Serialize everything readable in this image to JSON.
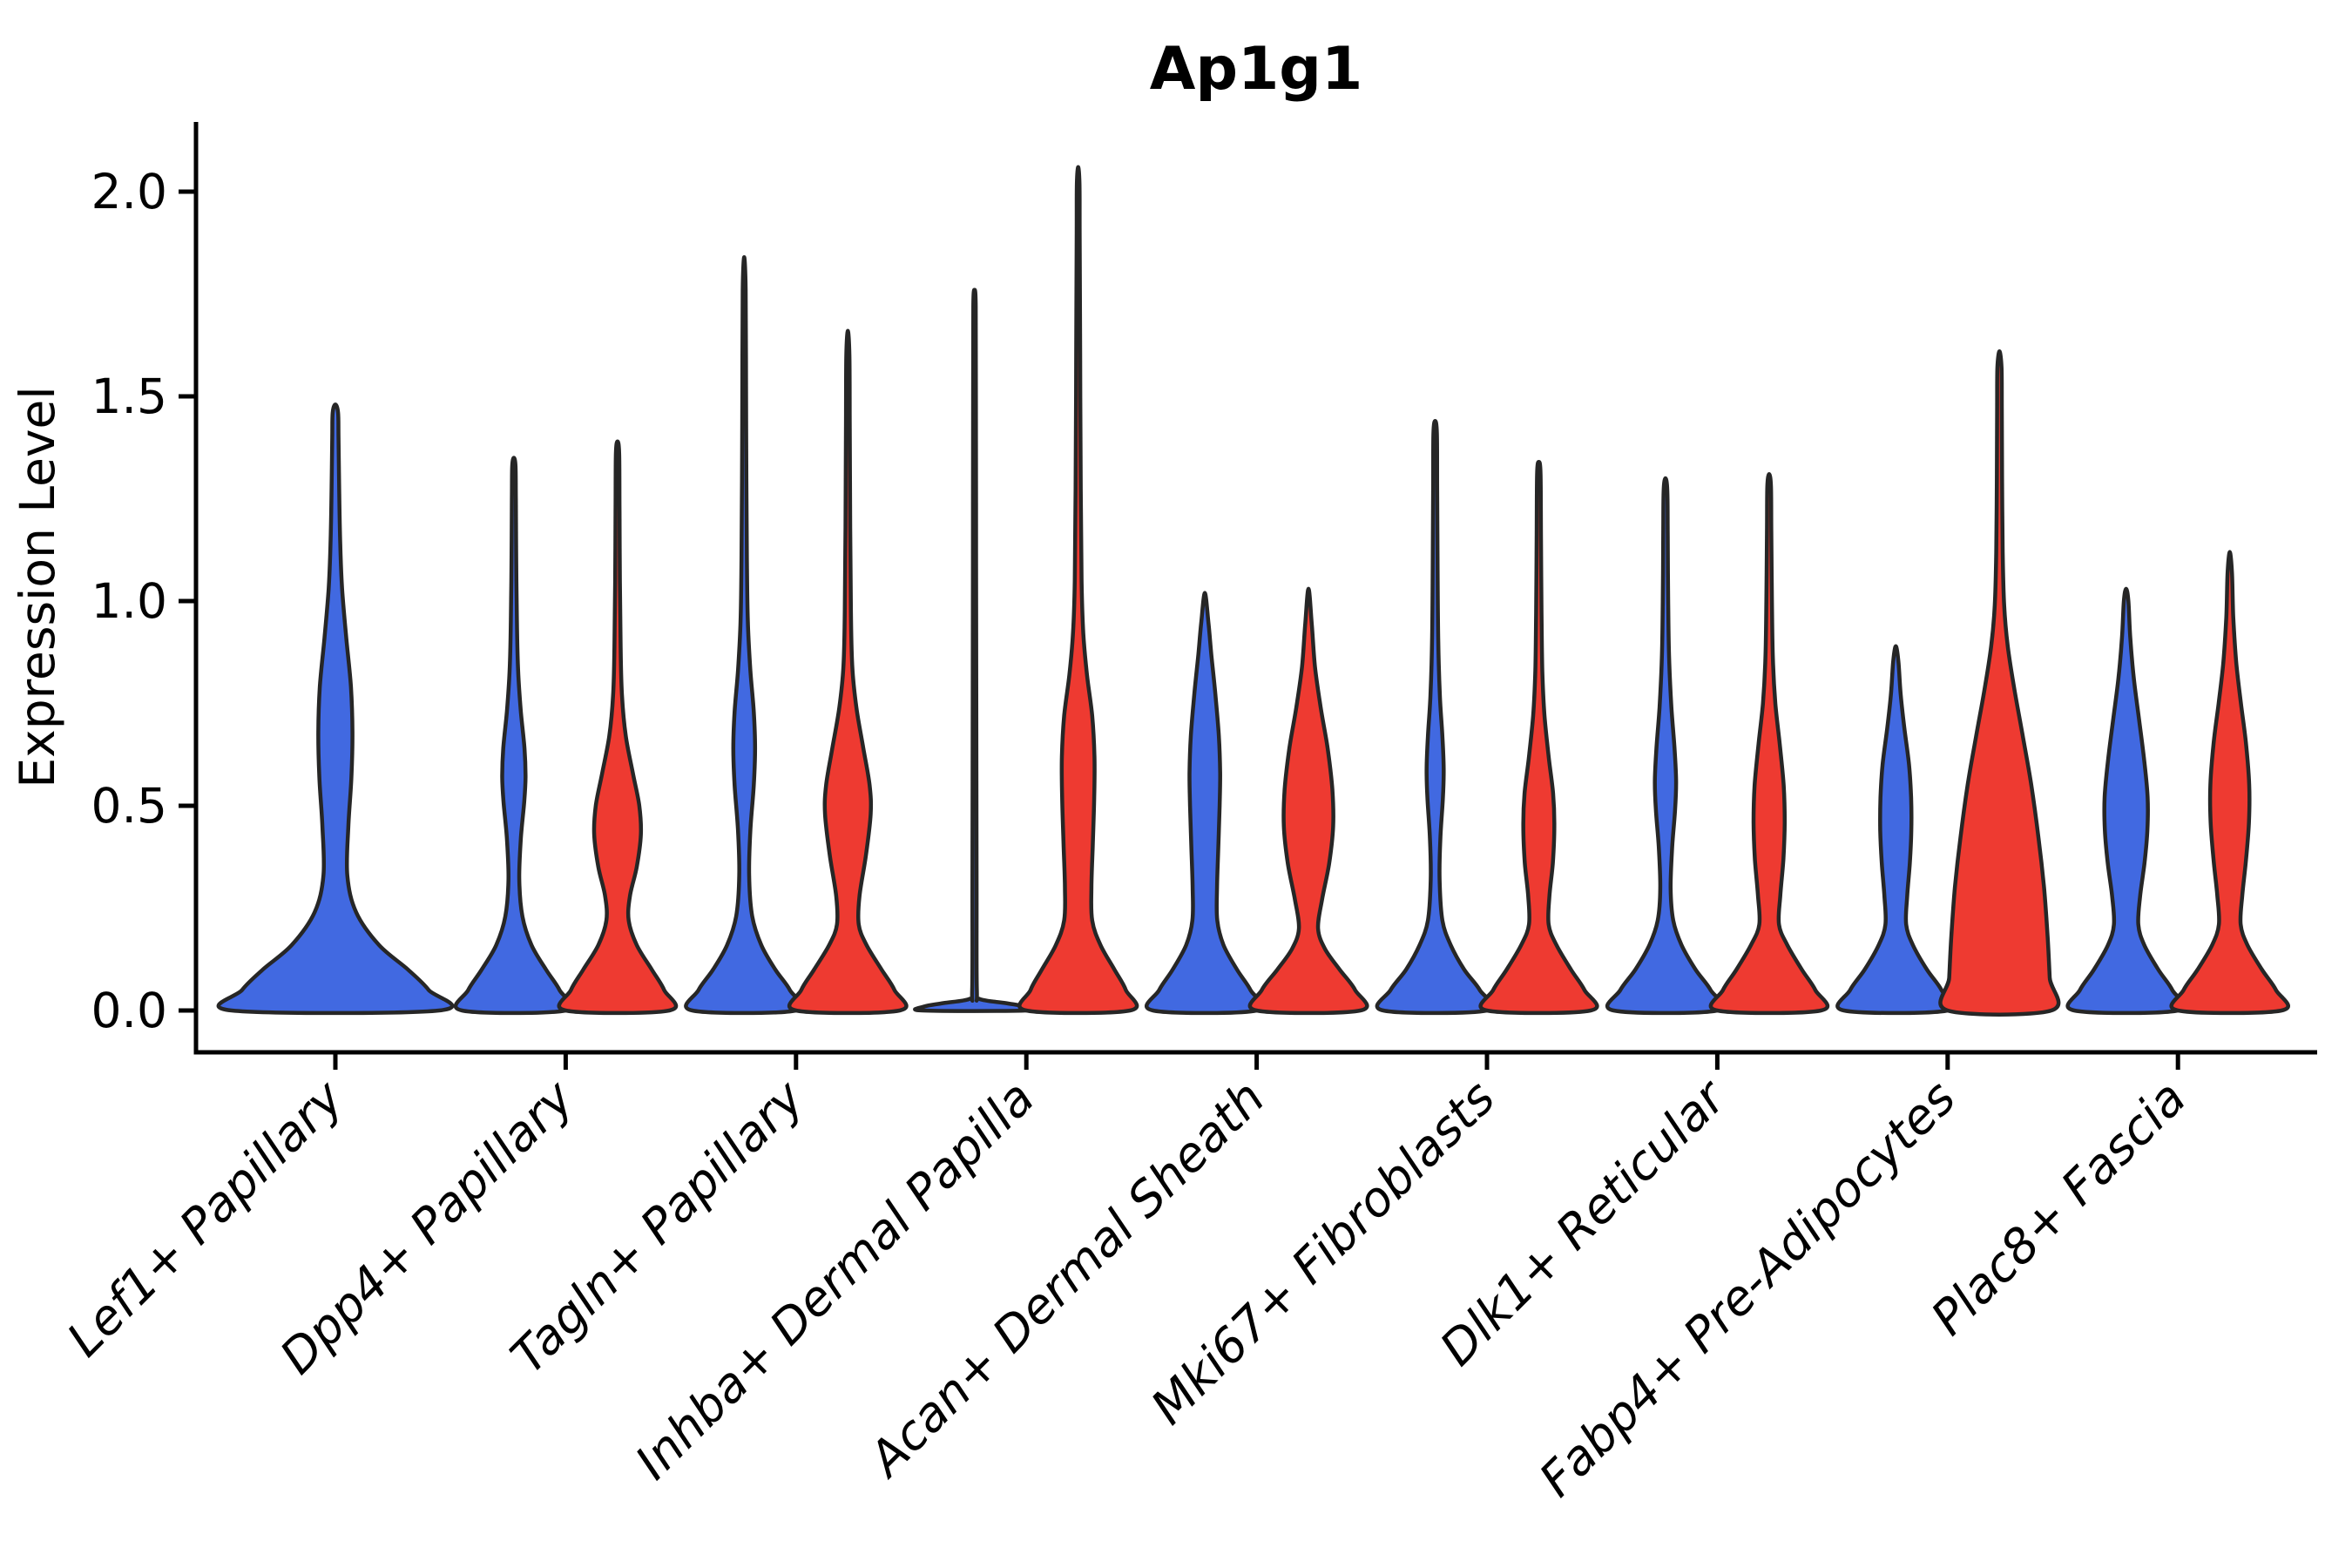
{
  "chart_data": {
    "type": "violin",
    "title": "Ap1g1",
    "xlabel": "",
    "ylabel": "Expression Level",
    "ylim": [
      0,
      2.1
    ],
    "yticks": [
      0.0,
      0.5,
      1.0,
      1.5,
      2.0
    ],
    "grid": false,
    "legend_position": "none",
    "split": "paired half-width violins per category (blue left, red right)",
    "colors": {
      "blue": "#4169E1",
      "red": "#EE3A31",
      "outline": "#262626",
      "axis": "#000000"
    },
    "categories": [
      "Lef1+ Papillary",
      "Dpp4+ Papillary",
      "Tagln+ Papillary",
      "Inhba+ Dermal Papilla",
      "Acan+ Dermal Sheath",
      "Mki67+ Fibroblasts",
      "Dlk1+ Reticular",
      "Fabp4+ Pre-Adipocytes",
      "Plac8+ Fascia"
    ],
    "violins": [
      {
        "category": "Lef1+ Papillary",
        "split": "blue",
        "position": "full",
        "tip": 1.48,
        "profile": [
          [
            0,
            1.0
          ],
          [
            0.05,
            0.9
          ],
          [
            0.1,
            0.7
          ],
          [
            0.16,
            0.42
          ],
          [
            0.24,
            0.2
          ],
          [
            0.33,
            0.115
          ],
          [
            0.45,
            0.125
          ],
          [
            0.57,
            0.155
          ],
          [
            0.68,
            0.165
          ],
          [
            0.79,
            0.15
          ],
          [
            0.91,
            0.105
          ],
          [
            1.03,
            0.065
          ],
          [
            1.14,
            0.047
          ],
          [
            1.27,
            0.037
          ],
          [
            1.4,
            0.03
          ],
          [
            1.46,
            0.026
          ],
          [
            1.48,
            0
          ]
        ]
      },
      {
        "category": "Dpp4+ Papillary",
        "split": "blue",
        "position": "left",
        "tip": 1.35,
        "profile": [
          [
            0,
            1.0
          ],
          [
            0.05,
            0.88
          ],
          [
            0.1,
            0.62
          ],
          [
            0.16,
            0.34
          ],
          [
            0.23,
            0.165
          ],
          [
            0.32,
            0.105
          ],
          [
            0.42,
            0.135
          ],
          [
            0.51,
            0.2
          ],
          [
            0.57,
            0.225
          ],
          [
            0.64,
            0.205
          ],
          [
            0.73,
            0.135
          ],
          [
            0.83,
            0.082
          ],
          [
            0.95,
            0.058
          ],
          [
            1.1,
            0.046
          ],
          [
            1.25,
            0.038
          ],
          [
            1.33,
            0.032
          ],
          [
            1.35,
            0
          ]
        ]
      },
      {
        "category": "Dpp4+ Papillary",
        "split": "red",
        "position": "right",
        "tip": 1.39,
        "profile": [
          [
            0,
            1.0
          ],
          [
            0.05,
            0.9
          ],
          [
            0.1,
            0.66
          ],
          [
            0.16,
            0.37
          ],
          [
            0.22,
            0.215
          ],
          [
            0.28,
            0.24
          ],
          [
            0.35,
            0.37
          ],
          [
            0.43,
            0.45
          ],
          [
            0.5,
            0.42
          ],
          [
            0.58,
            0.295
          ],
          [
            0.67,
            0.16
          ],
          [
            0.77,
            0.085
          ],
          [
            0.9,
            0.058
          ],
          [
            1.05,
            0.046
          ],
          [
            1.22,
            0.038
          ],
          [
            1.36,
            0.032
          ],
          [
            1.39,
            0
          ]
        ]
      },
      {
        "category": "Tagln+ Papillary",
        "split": "blue",
        "position": "left",
        "tip": 1.84,
        "profile": [
          [
            0,
            1.0
          ],
          [
            0.05,
            0.88
          ],
          [
            0.1,
            0.6
          ],
          [
            0.16,
            0.33
          ],
          [
            0.23,
            0.155
          ],
          [
            0.33,
            0.095
          ],
          [
            0.44,
            0.12
          ],
          [
            0.55,
            0.185
          ],
          [
            0.64,
            0.21
          ],
          [
            0.73,
            0.185
          ],
          [
            0.83,
            0.12
          ],
          [
            0.95,
            0.07
          ],
          [
            1.1,
            0.052
          ],
          [
            1.3,
            0.042
          ],
          [
            1.55,
            0.035
          ],
          [
            1.76,
            0.029
          ],
          [
            1.84,
            0
          ]
        ]
      },
      {
        "category": "Tagln+ Papillary",
        "split": "red",
        "position": "right",
        "tip": 1.66,
        "profile": [
          [
            0,
            1.0
          ],
          [
            0.05,
            0.9
          ],
          [
            0.1,
            0.65
          ],
          [
            0.16,
            0.36
          ],
          [
            0.21,
            0.21
          ],
          [
            0.28,
            0.225
          ],
          [
            0.38,
            0.35
          ],
          [
            0.48,
            0.44
          ],
          [
            0.55,
            0.42
          ],
          [
            0.64,
            0.3
          ],
          [
            0.74,
            0.165
          ],
          [
            0.84,
            0.085
          ],
          [
            0.98,
            0.058
          ],
          [
            1.18,
            0.046
          ],
          [
            1.42,
            0.037
          ],
          [
            1.6,
            0.03
          ],
          [
            1.66,
            0
          ]
        ]
      },
      {
        "category": "Inhba+ Dermal Papilla",
        "split": "blue",
        "position": "left",
        "tip": 1.76,
        "profile": [
          [
            0,
            1.0
          ],
          [
            0.01,
            0.96
          ],
          [
            0.018,
            0.6
          ],
          [
            0.028,
            0.1
          ],
          [
            0.05,
            0.045
          ],
          [
            0.3,
            0.04
          ],
          [
            0.7,
            0.035
          ],
          [
            1.1,
            0.031
          ],
          [
            1.5,
            0.027
          ],
          [
            1.72,
            0.024
          ],
          [
            1.76,
            0
          ]
        ]
      },
      {
        "category": "Inhba+ Dermal Papilla",
        "split": "red",
        "position": "right",
        "tip": 2.06,
        "profile": [
          [
            0,
            1.0
          ],
          [
            0.05,
            0.92
          ],
          [
            0.1,
            0.7
          ],
          [
            0.16,
            0.43
          ],
          [
            0.22,
            0.27
          ],
          [
            0.3,
            0.255
          ],
          [
            0.4,
            0.28
          ],
          [
            0.52,
            0.31
          ],
          [
            0.62,
            0.315
          ],
          [
            0.72,
            0.27
          ],
          [
            0.82,
            0.17
          ],
          [
            0.92,
            0.1
          ],
          [
            1.05,
            0.065
          ],
          [
            1.3,
            0.048
          ],
          [
            1.6,
            0.038
          ],
          [
            1.9,
            0.029
          ],
          [
            2.02,
            0.025
          ],
          [
            2.06,
            0
          ]
        ]
      },
      {
        "category": "Acan+ Dermal Sheath",
        "split": "blue",
        "position": "left",
        "tip": 1.02,
        "profile": [
          [
            0,
            1.0
          ],
          [
            0.05,
            0.88
          ],
          [
            0.1,
            0.62
          ],
          [
            0.16,
            0.36
          ],
          [
            0.22,
            0.24
          ],
          [
            0.3,
            0.235
          ],
          [
            0.4,
            0.26
          ],
          [
            0.5,
            0.285
          ],
          [
            0.58,
            0.295
          ],
          [
            0.67,
            0.27
          ],
          [
            0.77,
            0.205
          ],
          [
            0.87,
            0.125
          ],
          [
            0.95,
            0.068
          ],
          [
            1.02,
            0
          ]
        ]
      },
      {
        "category": "Acan+ Dermal Sheath",
        "split": "red",
        "position": "right",
        "tip": 1.03,
        "profile": [
          [
            0,
            1.0
          ],
          [
            0.05,
            0.9
          ],
          [
            0.1,
            0.6
          ],
          [
            0.15,
            0.32
          ],
          [
            0.2,
            0.185
          ],
          [
            0.27,
            0.26
          ],
          [
            0.36,
            0.4
          ],
          [
            0.45,
            0.475
          ],
          [
            0.54,
            0.46
          ],
          [
            0.64,
            0.37
          ],
          [
            0.74,
            0.235
          ],
          [
            0.84,
            0.125
          ],
          [
            0.94,
            0.065
          ],
          [
            1.03,
            0
          ]
        ]
      },
      {
        "category": "Mki67+ Fibroblasts",
        "split": "blue",
        "position": "left",
        "tip": 1.44,
        "profile": [
          [
            0,
            1.0
          ],
          [
            0.05,
            0.86
          ],
          [
            0.1,
            0.56
          ],
          [
            0.16,
            0.3
          ],
          [
            0.22,
            0.14
          ],
          [
            0.32,
            0.085
          ],
          [
            0.42,
            0.1
          ],
          [
            0.52,
            0.15
          ],
          [
            0.59,
            0.165
          ],
          [
            0.67,
            0.14
          ],
          [
            0.77,
            0.09
          ],
          [
            0.9,
            0.06
          ],
          [
            1.08,
            0.047
          ],
          [
            1.28,
            0.039
          ],
          [
            1.41,
            0.033
          ],
          [
            1.44,
            0
          ]
        ]
      },
      {
        "category": "Mki67+ Fibroblasts",
        "split": "red",
        "position": "right",
        "tip": 1.34,
        "profile": [
          [
            0,
            1.0
          ],
          [
            0.05,
            0.88
          ],
          [
            0.1,
            0.62
          ],
          [
            0.16,
            0.34
          ],
          [
            0.21,
            0.19
          ],
          [
            0.28,
            0.205
          ],
          [
            0.36,
            0.27
          ],
          [
            0.45,
            0.3
          ],
          [
            0.53,
            0.275
          ],
          [
            0.62,
            0.19
          ],
          [
            0.72,
            0.11
          ],
          [
            0.83,
            0.068
          ],
          [
            0.97,
            0.052
          ],
          [
            1.15,
            0.042
          ],
          [
            1.31,
            0.034
          ],
          [
            1.34,
            0
          ]
        ]
      },
      {
        "category": "Dlk1+ Reticular",
        "split": "blue",
        "position": "left",
        "tip": 1.3,
        "profile": [
          [
            0,
            1.0
          ],
          [
            0.05,
            0.87
          ],
          [
            0.1,
            0.58
          ],
          [
            0.16,
            0.31
          ],
          [
            0.22,
            0.15
          ],
          [
            0.3,
            0.1
          ],
          [
            0.4,
            0.13
          ],
          [
            0.49,
            0.185
          ],
          [
            0.56,
            0.205
          ],
          [
            0.64,
            0.175
          ],
          [
            0.74,
            0.115
          ],
          [
            0.86,
            0.07
          ],
          [
            1.0,
            0.052
          ],
          [
            1.16,
            0.043
          ],
          [
            1.27,
            0.036
          ],
          [
            1.3,
            0
          ]
        ]
      },
      {
        "category": "Dlk1+ Reticular",
        "split": "red",
        "position": "right",
        "tip": 1.31,
        "profile": [
          [
            0,
            1.0
          ],
          [
            0.05,
            0.89
          ],
          [
            0.1,
            0.63
          ],
          [
            0.16,
            0.35
          ],
          [
            0.21,
            0.19
          ],
          [
            0.28,
            0.215
          ],
          [
            0.37,
            0.275
          ],
          [
            0.46,
            0.3
          ],
          [
            0.55,
            0.28
          ],
          [
            0.65,
            0.205
          ],
          [
            0.75,
            0.12
          ],
          [
            0.86,
            0.072
          ],
          [
            1.0,
            0.053
          ],
          [
            1.17,
            0.042
          ],
          [
            1.28,
            0.035
          ],
          [
            1.31,
            0
          ]
        ]
      },
      {
        "category": "Fabp4+ Pre-Adipocytes",
        "split": "blue",
        "position": "left",
        "tip": 0.89,
        "profile": [
          [
            0,
            1.0
          ],
          [
            0.05,
            0.88
          ],
          [
            0.1,
            0.6
          ],
          [
            0.16,
            0.33
          ],
          [
            0.21,
            0.2
          ],
          [
            0.28,
            0.22
          ],
          [
            0.36,
            0.27
          ],
          [
            0.44,
            0.3
          ],
          [
            0.52,
            0.295
          ],
          [
            0.6,
            0.255
          ],
          [
            0.69,
            0.165
          ],
          [
            0.77,
            0.095
          ],
          [
            0.85,
            0.052
          ],
          [
            0.89,
            0
          ]
        ]
      },
      {
        "category": "Fabp4+ Pre-Adipocytes",
        "split": "red",
        "position": "right",
        "tip": 1.61,
        "profile": [
          [
            0,
            1.0
          ],
          [
            0.08,
            0.97
          ],
          [
            0.18,
            0.93
          ],
          [
            0.3,
            0.86
          ],
          [
            0.42,
            0.755
          ],
          [
            0.55,
            0.615
          ],
          [
            0.67,
            0.45
          ],
          [
            0.79,
            0.28
          ],
          [
            0.89,
            0.16
          ],
          [
            0.99,
            0.09
          ],
          [
            1.12,
            0.062
          ],
          [
            1.3,
            0.051
          ],
          [
            1.47,
            0.045
          ],
          [
            1.57,
            0.04
          ],
          [
            1.61,
            0
          ]
        ]
      },
      {
        "category": "Plac8+ Fascia",
        "split": "blue",
        "position": "left",
        "tip": 1.03,
        "profile": [
          [
            0,
            1.0
          ],
          [
            0.05,
            0.89
          ],
          [
            0.1,
            0.62
          ],
          [
            0.16,
            0.35
          ],
          [
            0.21,
            0.235
          ],
          [
            0.28,
            0.27
          ],
          [
            0.36,
            0.355
          ],
          [
            0.44,
            0.41
          ],
          [
            0.52,
            0.415
          ],
          [
            0.61,
            0.35
          ],
          [
            0.71,
            0.25
          ],
          [
            0.81,
            0.15
          ],
          [
            0.91,
            0.08
          ],
          [
            1.0,
            0.044
          ],
          [
            1.03,
            0
          ]
        ]
      },
      {
        "category": "Plac8+ Fascia",
        "split": "red",
        "position": "right",
        "tip": 1.12,
        "profile": [
          [
            0,
            1.0
          ],
          [
            0.05,
            0.89
          ],
          [
            0.1,
            0.62
          ],
          [
            0.16,
            0.34
          ],
          [
            0.21,
            0.21
          ],
          [
            0.28,
            0.24
          ],
          [
            0.37,
            0.315
          ],
          [
            0.46,
            0.37
          ],
          [
            0.55,
            0.375
          ],
          [
            0.65,
            0.315
          ],
          [
            0.75,
            0.215
          ],
          [
            0.85,
            0.125
          ],
          [
            0.96,
            0.068
          ],
          [
            1.07,
            0.042
          ],
          [
            1.12,
            0
          ]
        ]
      }
    ]
  }
}
